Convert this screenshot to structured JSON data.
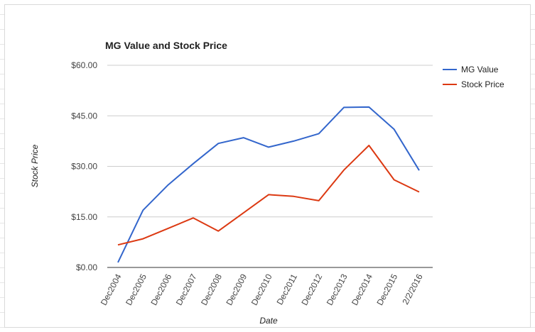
{
  "chart_data": {
    "type": "line",
    "title": "MG Value and Stock Price",
    "xlabel": "Date",
    "ylabel": "Stock Price",
    "categories": [
      "Dec2004",
      "Dec2005",
      "Dec2006",
      "Dec2007",
      "Dec2008",
      "Dec2009",
      "Dec2010",
      "Dec2011",
      "Dec2012",
      "Dec2013",
      "Dec2014",
      "Dec2015",
      "2/2/2016"
    ],
    "y_ticks": [
      "$0.00",
      "$15.00",
      "$30.00",
      "$45.00",
      "$60.00"
    ],
    "ylim": [
      0,
      60
    ],
    "grid": true,
    "legend_position": "right",
    "series": [
      {
        "name": "MG Value",
        "color": "#3366cc",
        "values": [
          1.5,
          17.0,
          24.5,
          30.8,
          36.8,
          38.5,
          35.7,
          37.5,
          39.7,
          47.5,
          47.6,
          41.0,
          28.8
        ]
      },
      {
        "name": "Stock Price",
        "color": "#dc3912",
        "values": [
          6.7,
          8.5,
          11.6,
          14.7,
          10.8,
          16.2,
          21.6,
          21.1,
          19.8,
          28.9,
          36.2,
          26.0,
          22.4
        ]
      }
    ]
  }
}
